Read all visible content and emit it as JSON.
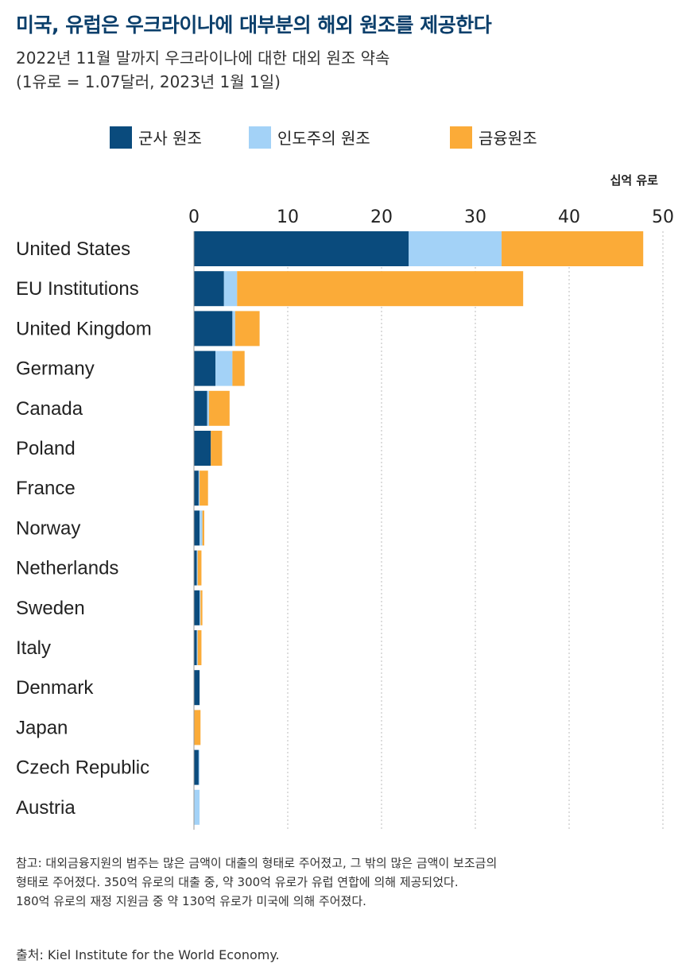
{
  "title": "미국, 유럽은 우크라이나에 대부분의 해외 원조를 제공한다",
  "subtitle_line1": "2022년 11월 말까지 우크라이나에 대한 대외 원조 약속",
  "subtitle_line2": "(1유로 = 1.07달러, 2023년 1월 1일)",
  "unit_label": "십억 유로",
  "colors": {
    "military": "#0a4b7d",
    "humanitarian": "#a3d2f7",
    "financial": "#fbab38",
    "grid": "#bbbbbb"
  },
  "chart_data": {
    "type": "bar",
    "orientation": "horizontal",
    "stacked": true,
    "xlim": [
      0,
      50
    ],
    "xticks": [
      "0",
      "10",
      "20",
      "30",
      "40",
      "50"
    ],
    "categories": [
      "United States",
      "EU Institutions",
      "United Kingdom",
      "Germany",
      "Canada",
      "Poland",
      "France",
      "Norway",
      "Netherlands",
      "Sweden",
      "Italy",
      "Denmark",
      "Japan",
      "Czech Republic",
      "Austria"
    ],
    "series": [
      {
        "name": "군사 원조",
        "values": [
          22.9,
          3.2,
          4.1,
          2.3,
          1.4,
          1.8,
          0.5,
          0.6,
          0.3,
          0.6,
          0.3,
          0.6,
          0.0,
          0.5,
          0.0
        ]
      },
      {
        "name": "인도주의 원조",
        "values": [
          9.9,
          1.4,
          0.3,
          1.8,
          0.2,
          0.0,
          0.1,
          0.3,
          0.1,
          0.1,
          0.1,
          0.0,
          0.0,
          0.1,
          0.6
        ]
      },
      {
        "name": "금융원조",
        "values": [
          15.1,
          30.5,
          2.6,
          1.3,
          2.2,
          1.2,
          0.9,
          0.2,
          0.4,
          0.2,
          0.4,
          0.0,
          0.7,
          0.0,
          0.0
        ]
      }
    ]
  },
  "note_lines": [
    "참고: 대외금융지원의 범주는 많은 금액이 대출의 형태로 주어졌고, 그 밖의 많은 금액이 보조금의",
    "형태로 주어졌다. 350억 유로의 대출 중, 약 300억 유로가 유럽 연합에 의해 제공되었다.",
    "180억 유로의 재정 지원금 중 약 130억 유로가 미국에 의해 주어졌다."
  ],
  "source": "출처: Kiel Institute for the World Economy."
}
